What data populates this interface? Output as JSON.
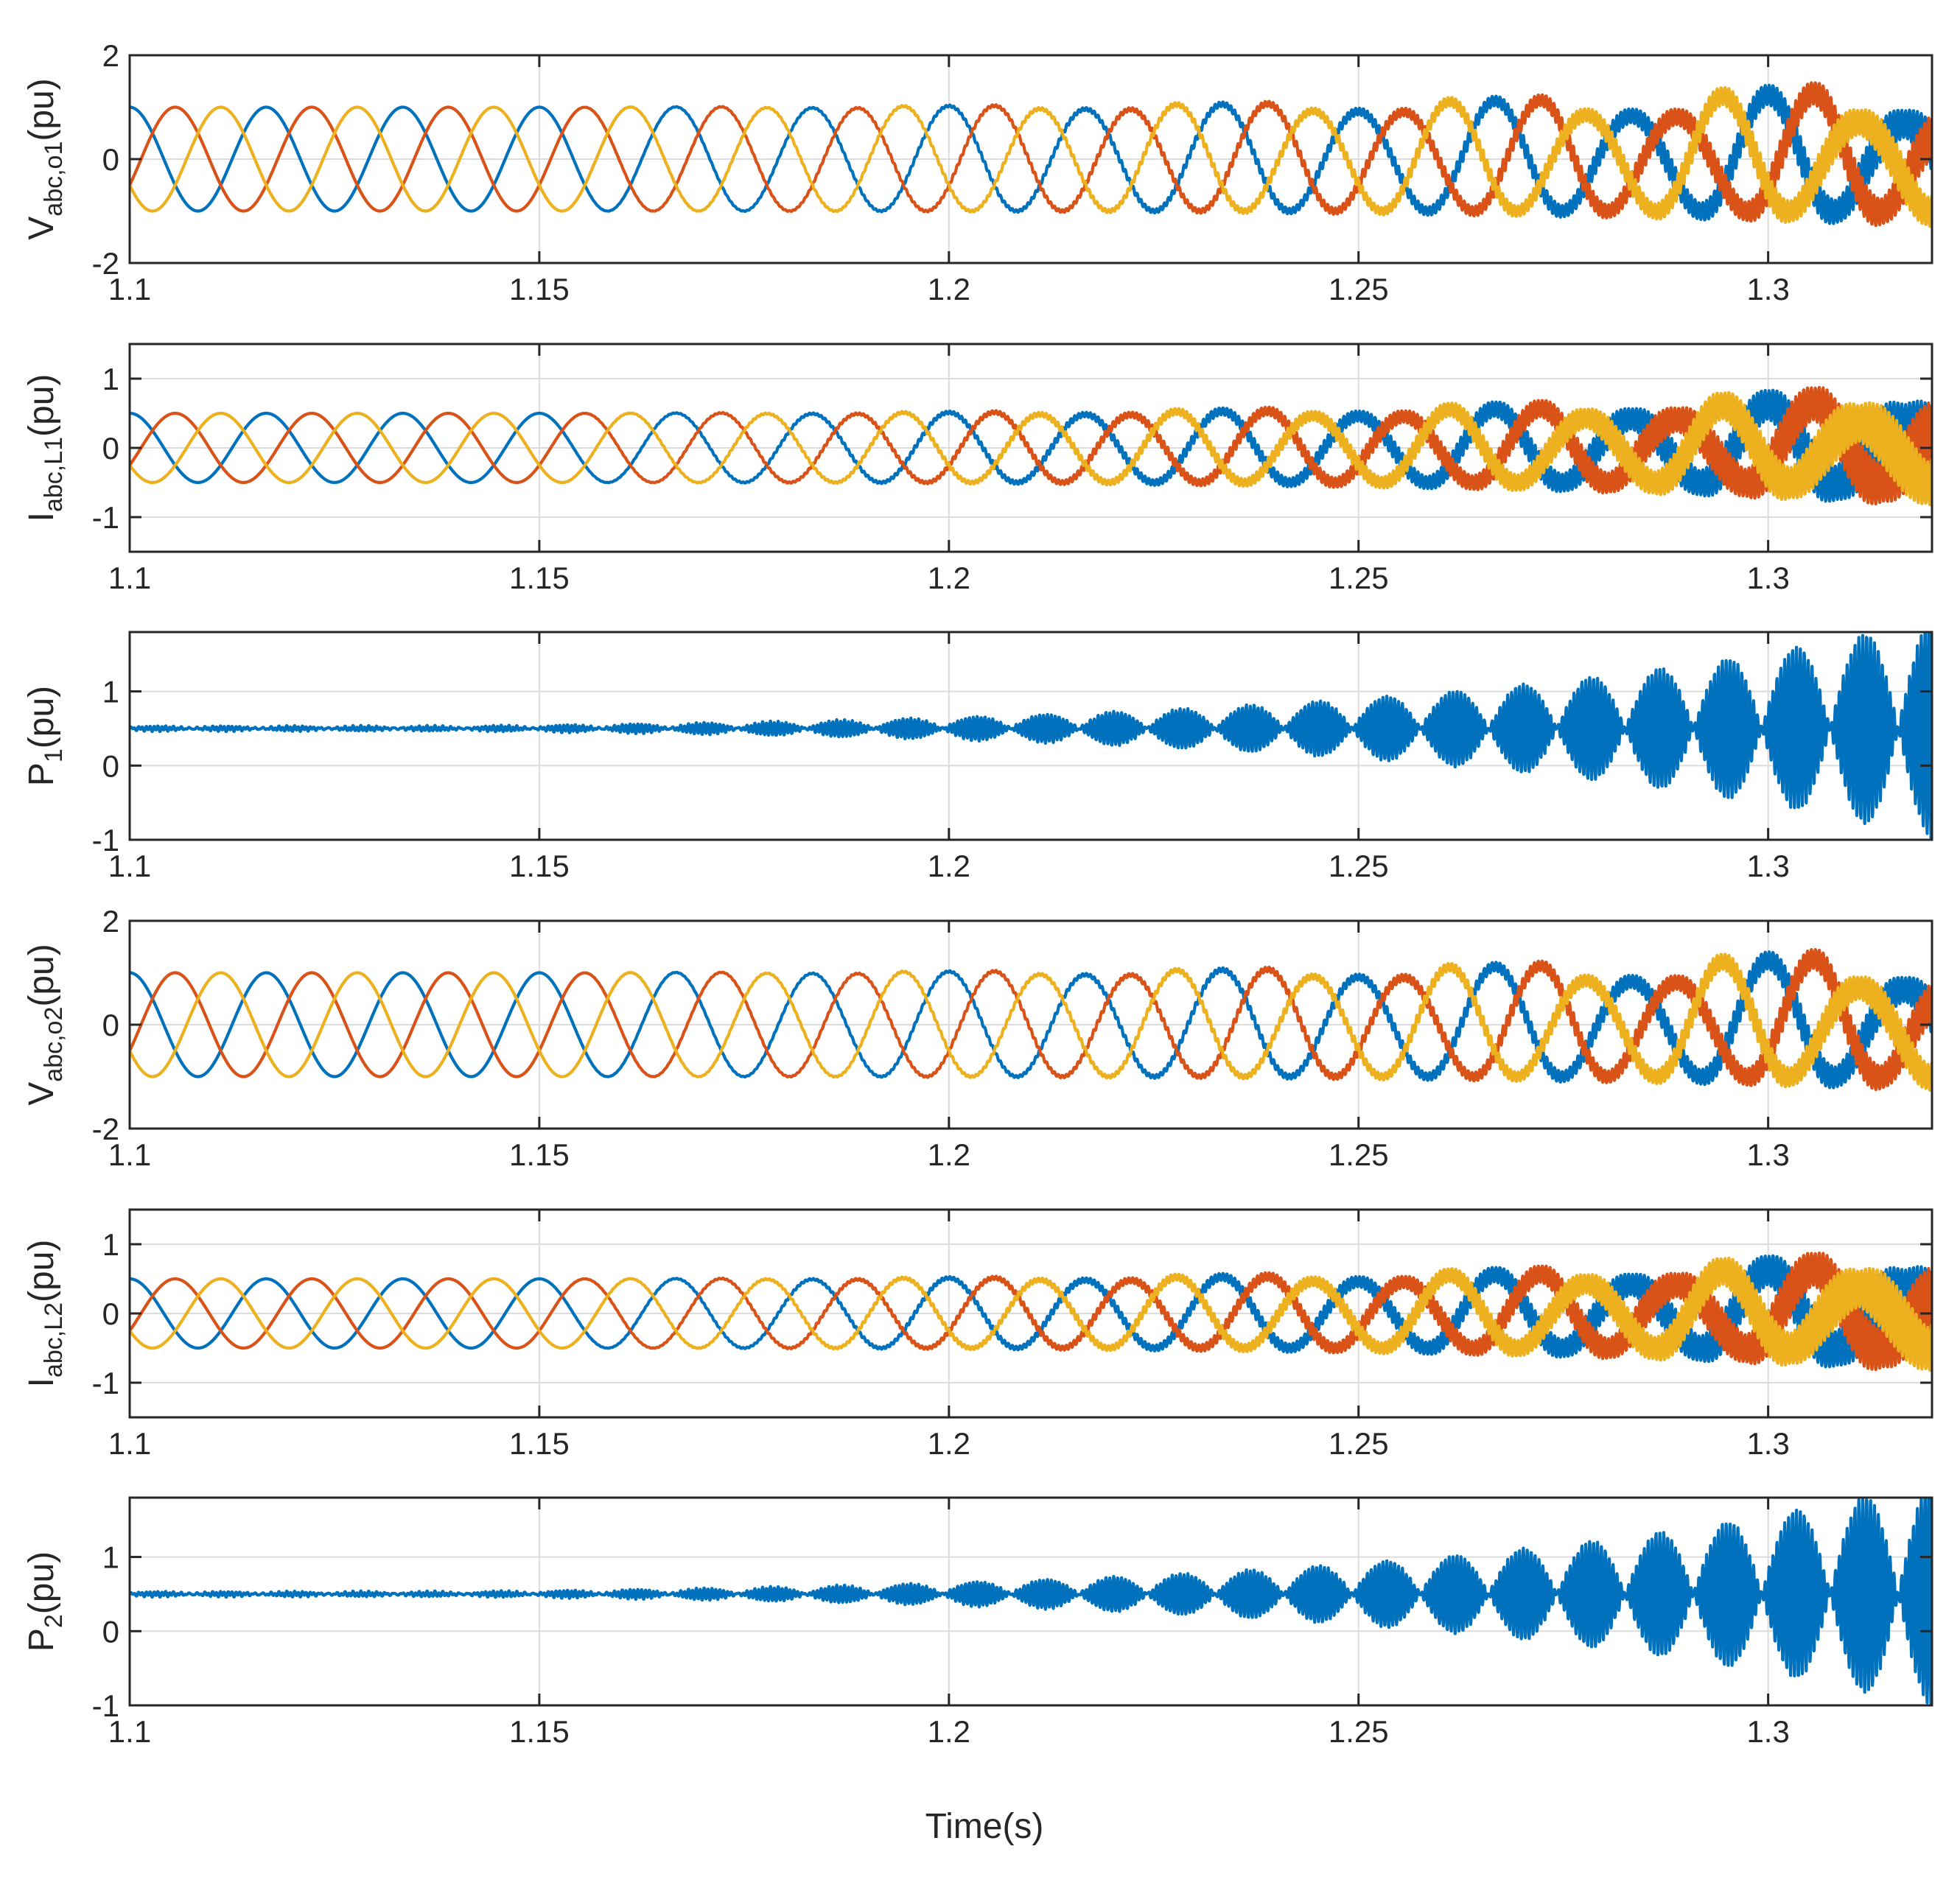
{
  "colors": {
    "phase_a": "#0072BD",
    "phase_b": "#D95319",
    "phase_c": "#EDB120",
    "power": "#0072BD",
    "grid": "#dcdcdc",
    "axis": "#262626"
  },
  "figure": {
    "xlabel": "Time(s)"
  },
  "chart_data": [
    {
      "type": "line",
      "ylabel_main": "V",
      "ylabel_sub": "abc,o1",
      "ylabel_unit": "(pu)",
      "xlim": [
        1.1,
        1.32
      ],
      "ylim": [
        -2,
        2
      ],
      "x_ticks": [
        "1.1",
        "1.15",
        "1.2",
        "1.25",
        "1.3"
      ],
      "y_ticks": [
        "-2",
        "0",
        "2"
      ],
      "grid": true,
      "fundamental_hz": 60,
      "series": [
        {
          "phase_deg": 0,
          "amplitude": 1.0,
          "color_key": "phase_a"
        },
        {
          "phase_deg": -120,
          "amplitude": 1.0,
          "color_key": "phase_b"
        },
        {
          "phase_deg": 120,
          "amplitude": 1.0,
          "color_key": "phase_c"
        }
      ],
      "oscillation": {
        "onset_time": 1.15,
        "envelope_at_end": 0.45,
        "harmonic_hz": 2100
      }
    },
    {
      "type": "line",
      "ylabel_main": "I",
      "ylabel_sub": "abc,L1",
      "ylabel_unit": "(pu)",
      "xlim": [
        1.1,
        1.32
      ],
      "ylim": [
        -1.5,
        1.5
      ],
      "x_ticks": [
        "1.1",
        "1.15",
        "1.2",
        "1.25",
        "1.3"
      ],
      "y_ticks": [
        "-1",
        "0",
        "1"
      ],
      "grid": true,
      "fundamental_hz": 60,
      "series": [
        {
          "phase_deg": 0,
          "amplitude": 0.5,
          "color_key": "phase_a"
        },
        {
          "phase_deg": -120,
          "amplitude": 0.5,
          "color_key": "phase_b"
        },
        {
          "phase_deg": 120,
          "amplitude": 0.5,
          "color_key": "phase_c"
        }
      ],
      "oscillation": {
        "onset_time": 1.15,
        "envelope_at_end": 0.5,
        "harmonic_hz": 2100
      }
    },
    {
      "type": "line",
      "ylabel_main": "P",
      "ylabel_sub": "1",
      "ylabel_unit": "(pu)",
      "xlim": [
        1.1,
        1.32
      ],
      "ylim": [
        -1,
        1.8
      ],
      "x_ticks": [
        "1.1",
        "1.15",
        "1.2",
        "1.25",
        "1.3"
      ],
      "y_ticks": [
        "-1",
        "0",
        "1"
      ],
      "grid": true,
      "power": {
        "mean": 0.5,
        "beat_hz": 120,
        "envelope_at_end": 1.45,
        "onset_time": 1.14,
        "harmonic_hz": 2100
      }
    },
    {
      "type": "line",
      "ylabel_main": "V",
      "ylabel_sub": "abc,o2",
      "ylabel_unit": "(pu)",
      "xlim": [
        1.1,
        1.32
      ],
      "ylim": [
        -2,
        2
      ],
      "x_ticks": [
        "1.1",
        "1.15",
        "1.2",
        "1.25",
        "1.3"
      ],
      "y_ticks": [
        "-2",
        "0",
        "2"
      ],
      "grid": true,
      "fundamental_hz": 60,
      "series": [
        {
          "phase_deg": 0,
          "amplitude": 1.0,
          "color_key": "phase_a"
        },
        {
          "phase_deg": -120,
          "amplitude": 1.0,
          "color_key": "phase_b"
        },
        {
          "phase_deg": 120,
          "amplitude": 1.0,
          "color_key": "phase_c"
        }
      ],
      "oscillation": {
        "onset_time": 1.15,
        "envelope_at_end": 0.4,
        "harmonic_hz": 2100
      }
    },
    {
      "type": "line",
      "ylabel_main": "I",
      "ylabel_sub": "abc,L2",
      "ylabel_unit": "(pu)",
      "xlim": [
        1.1,
        1.32
      ],
      "ylim": [
        -1.5,
        1.5
      ],
      "x_ticks": [
        "1.1",
        "1.15",
        "1.2",
        "1.25",
        "1.3"
      ],
      "y_ticks": [
        "-1",
        "0",
        "1"
      ],
      "grid": true,
      "fundamental_hz": 60,
      "series": [
        {
          "phase_deg": 0,
          "amplitude": 0.5,
          "color_key": "phase_a"
        },
        {
          "phase_deg": -120,
          "amplitude": 0.5,
          "color_key": "phase_b"
        },
        {
          "phase_deg": 120,
          "amplitude": 0.5,
          "color_key": "phase_c"
        }
      ],
      "oscillation": {
        "onset_time": 1.15,
        "envelope_at_end": 0.5,
        "harmonic_hz": 2100
      }
    },
    {
      "type": "line",
      "ylabel_main": "P",
      "ylabel_sub": "2",
      "ylabel_unit": "(pu)",
      "xlim": [
        1.1,
        1.32
      ],
      "ylim": [
        -1,
        1.8
      ],
      "x_ticks": [
        "1.1",
        "1.15",
        "1.2",
        "1.25",
        "1.3"
      ],
      "y_ticks": [
        "-1",
        "0",
        "1"
      ],
      "grid": true,
      "power": {
        "mean": 0.5,
        "beat_hz": 120,
        "envelope_at_end": 1.5,
        "onset_time": 1.14,
        "harmonic_hz": 2100
      }
    }
  ]
}
